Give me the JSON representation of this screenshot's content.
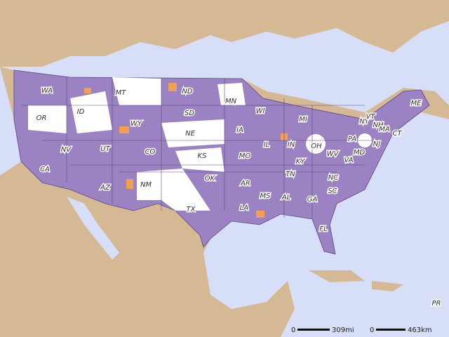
{
  "map": {
    "state_labels": [
      "WA",
      "OR",
      "ID",
      "MT",
      "ND",
      "MN",
      "WI",
      "MI",
      "SD",
      "WY",
      "NE",
      "IA",
      "IL",
      "IN",
      "OH",
      "PA",
      "NY",
      "VT",
      "NH",
      "ME",
      "MA",
      "CT",
      "NJ",
      "MD",
      "WV",
      "VA",
      "KY",
      "NV",
      "UT",
      "CO",
      "KS",
      "MO",
      "CA",
      "AZ",
      "NM",
      "OK",
      "AR",
      "TN",
      "NC",
      "SC",
      "MS",
      "AL",
      "GA",
      "LA",
      "TX",
      "FL",
      "PR"
    ],
    "scale": {
      "miles_zero": "0",
      "miles": "309mi",
      "km_zero": "0",
      "km": "463km"
    }
  }
}
